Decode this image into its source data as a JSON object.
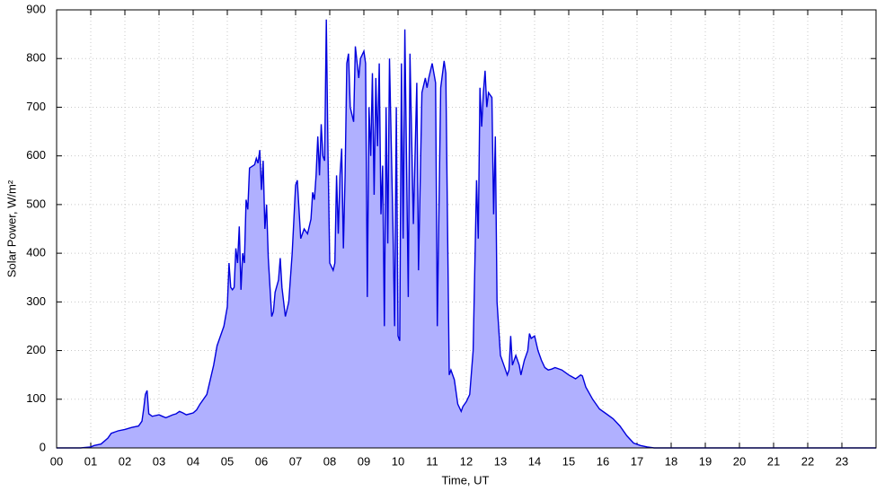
{
  "chart_data": {
    "type": "area",
    "xlabel": "Time, UT",
    "ylabel": "Solar Power, W/m²",
    "xlim": [
      0,
      24
    ],
    "ylim": [
      0,
      900
    ],
    "yticks": [
      0,
      100,
      200,
      300,
      400,
      500,
      600,
      700,
      800,
      900
    ],
    "xticks": [
      {
        "value": 0,
        "label": "00"
      },
      {
        "value": 1,
        "label": "01"
      },
      {
        "value": 2,
        "label": "02"
      },
      {
        "value": 3,
        "label": "03"
      },
      {
        "value": 4,
        "label": "04"
      },
      {
        "value": 5,
        "label": "05"
      },
      {
        "value": 6,
        "label": "06"
      },
      {
        "value": 7,
        "label": "07"
      },
      {
        "value": 8,
        "label": "08"
      },
      {
        "value": 9,
        "label": "09"
      },
      {
        "value": 10,
        "label": "10"
      },
      {
        "value": 11,
        "label": "11"
      },
      {
        "value": 12,
        "label": "12"
      },
      {
        "value": 13,
        "label": "13"
      },
      {
        "value": 14,
        "label": "14"
      },
      {
        "value": 15,
        "label": "15"
      },
      {
        "value": 16,
        "label": "16"
      },
      {
        "value": 17,
        "label": "17"
      },
      {
        "value": 18,
        "label": "18"
      },
      {
        "value": 19,
        "label": "19"
      },
      {
        "value": 20,
        "label": "20"
      },
      {
        "value": 21,
        "label": "21"
      },
      {
        "value": 22,
        "label": "22"
      },
      {
        "value": 23,
        "label": "23"
      }
    ],
    "grid": true,
    "line_color": "#0000dd",
    "fill_color": "#b0b0ff",
    "x": [
      0,
      0.7,
      1.0,
      1.1,
      1.3,
      1.5,
      1.6,
      1.8,
      2.0,
      2.2,
      2.4,
      2.5,
      2.55,
      2.6,
      2.65,
      2.7,
      2.8,
      3.0,
      3.1,
      3.2,
      3.4,
      3.5,
      3.6,
      3.7,
      3.8,
      4.0,
      4.1,
      4.2,
      4.4,
      4.5,
      4.6,
      4.7,
      4.9,
      5.0,
      5.05,
      5.1,
      5.15,
      5.2,
      5.25,
      5.3,
      5.35,
      5.4,
      5.45,
      5.5,
      5.55,
      5.6,
      5.65,
      5.8,
      5.85,
      5.9,
      5.95,
      6.0,
      6.05,
      6.1,
      6.15,
      6.2,
      6.25,
      6.3,
      6.35,
      6.4,
      6.5,
      6.55,
      6.6,
      6.7,
      6.8,
      6.9,
      7.0,
      7.05,
      7.15,
      7.25,
      7.35,
      7.45,
      7.5,
      7.55,
      7.6,
      7.65,
      7.7,
      7.75,
      7.8,
      7.85,
      7.9,
      7.95,
      8.0,
      8.1,
      8.15,
      8.2,
      8.25,
      8.3,
      8.35,
      8.4,
      8.45,
      8.5,
      8.55,
      8.6,
      8.7,
      8.75,
      8.85,
      8.9,
      9.0,
      9.05,
      9.1,
      9.15,
      9.2,
      9.25,
      9.3,
      9.35,
      9.4,
      9.45,
      9.5,
      9.55,
      9.6,
      9.65,
      9.7,
      9.75,
      9.85,
      9.9,
      9.95,
      10.0,
      10.05,
      10.1,
      10.15,
      10.2,
      10.3,
      10.35,
      10.45,
      10.55,
      10.6,
      10.7,
      10.8,
      10.85,
      10.9,
      11.0,
      11.1,
      11.15,
      11.25,
      11.35,
      11.4,
      11.5,
      11.55,
      11.65,
      11.75,
      11.85,
      11.9,
      12.0,
      12.1,
      12.2,
      12.3,
      12.35,
      12.4,
      12.45,
      12.5,
      12.55,
      12.6,
      12.65,
      12.75,
      12.8,
      12.85,
      12.9,
      13.0,
      13.1,
      13.2,
      13.25,
      13.3,
      13.35,
      13.45,
      13.55,
      13.6,
      13.7,
      13.8,
      13.85,
      13.9,
      14.0,
      14.1,
      14.2,
      14.3,
      14.4,
      14.5,
      14.6,
      14.8,
      15.0,
      15.2,
      15.35,
      15.4,
      15.5,
      15.7,
      15.9,
      16.1,
      16.3,
      16.5,
      16.7,
      16.9,
      17.1,
      17.3,
      17.5,
      24
    ],
    "series": [
      {
        "values": [
          0,
          0,
          2,
          5,
          8,
          20,
          30,
          35,
          38,
          42,
          45,
          55,
          80,
          110,
          118,
          70,
          65,
          68,
          65,
          62,
          68,
          70,
          75,
          72,
          68,
          72,
          78,
          90,
          110,
          140,
          170,
          210,
          250,
          290,
          380,
          330,
          325,
          330,
          410,
          380,
          455,
          325,
          400,
          380,
          510,
          490,
          575,
          582,
          595,
          585,
          612,
          530,
          590,
          450,
          500,
          390,
          330,
          270,
          280,
          320,
          345,
          390,
          330,
          270,
          300,
          400,
          540,
          550,
          430,
          450,
          440,
          470,
          525,
          510,
          560,
          640,
          560,
          665,
          600,
          590,
          880,
          600,
          380,
          365,
          380,
          560,
          440,
          560,
          615,
          410,
          560,
          790,
          810,
          700,
          670,
          825,
          760,
          800,
          815,
          790,
          310,
          700,
          600,
          770,
          520,
          760,
          620,
          790,
          480,
          580,
          250,
          700,
          420,
          800,
          460,
          250,
          700,
          230,
          220,
          790,
          430,
          860,
          310,
          810,
          460,
          750,
          365,
          730,
          760,
          740,
          760,
          790,
          750,
          250,
          740,
          795,
          770,
          150,
          160,
          140,
          90,
          75,
          85,
          95,
          110,
          200,
          550,
          430,
          740,
          660,
          730,
          775,
          700,
          730,
          720,
          480,
          640,
          300,
          190,
          170,
          150,
          160,
          230,
          170,
          190,
          170,
          150,
          180,
          200,
          235,
          225,
          230,
          200,
          180,
          165,
          160,
          162,
          165,
          160,
          150,
          142,
          150,
          148,
          125,
          100,
          80,
          70,
          60,
          45,
          25,
          10,
          5,
          2,
          0,
          0
        ]
      }
    ]
  }
}
